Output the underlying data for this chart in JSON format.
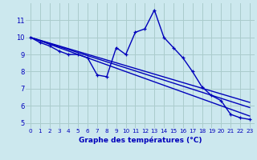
{
  "xlabel": "Graphe des températures (°C)",
  "background_color": "#cce8ee",
  "grid_color": "#aacccc",
  "line_color": "#0000bb",
  "xlim": [
    -0.5,
    23.5
  ],
  "ylim": [
    4.7,
    12.0
  ],
  "xticks": [
    0,
    1,
    2,
    3,
    4,
    5,
    6,
    7,
    8,
    9,
    10,
    11,
    12,
    13,
    14,
    15,
    16,
    17,
    18,
    19,
    20,
    21,
    22,
    23
  ],
  "yticks": [
    5,
    6,
    7,
    8,
    9,
    10,
    11
  ],
  "series1_x": [
    0,
    1,
    2,
    3,
    4,
    5,
    6,
    7,
    8,
    9,
    10,
    11,
    12,
    13,
    14,
    15,
    16,
    17,
    18,
    19,
    20,
    21,
    22,
    23
  ],
  "series1_y": [
    10.0,
    9.7,
    9.5,
    9.2,
    9.0,
    9.0,
    8.8,
    7.8,
    7.7,
    9.4,
    9.0,
    10.3,
    10.5,
    11.6,
    10.0,
    9.4,
    8.8,
    8.0,
    7.1,
    6.6,
    6.3,
    5.5,
    5.3,
    5.2
  ],
  "series2_x": [
    0,
    23
  ],
  "series2_y": [
    10.0,
    6.2
  ],
  "series3_x": [
    0,
    23
  ],
  "series3_y": [
    10.0,
    5.9
  ],
  "series4_x": [
    0,
    23
  ],
  "series4_y": [
    10.0,
    5.4
  ],
  "xlabel_fontsize": 6.5,
  "tick_fontsize_x": 5.2,
  "tick_fontsize_y": 6.0
}
